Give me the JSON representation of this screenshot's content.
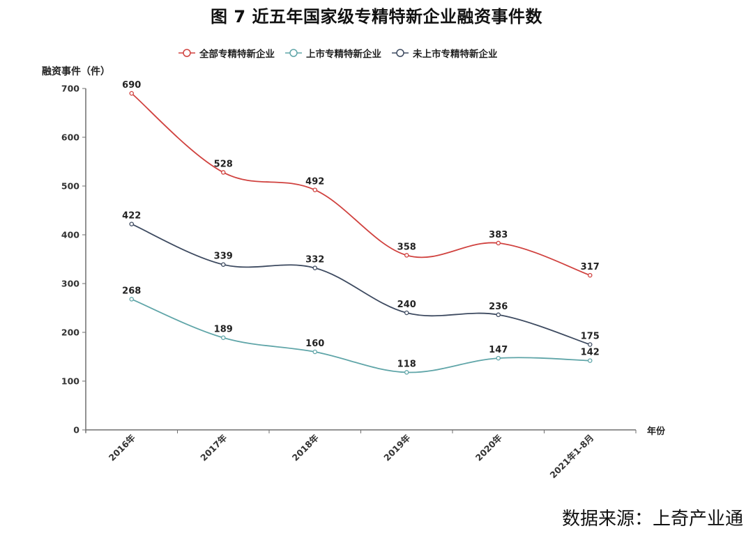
{
  "title": "图 7  近五年国家级专精特新企业融资事件数",
  "source": "数据来源：上奇产业通",
  "colors": {
    "all": "#d0413e",
    "listed": "#5fa5a8",
    "unlisted": "#3d4a60",
    "axis": "#6e6e6e"
  },
  "chart_data": {
    "type": "line",
    "smooth": true,
    "title": "图 7  近五年国家级专精特新企业融资事件数",
    "xlabel": "年份",
    "ylabel": "融资事件（件）",
    "ylim": [
      0,
      700
    ],
    "yticks": [
      0,
      100,
      200,
      300,
      400,
      500,
      600,
      700
    ],
    "grid": false,
    "legend_position": "top",
    "categories": [
      "2016年",
      "2017年",
      "2018年",
      "2019年",
      "2020年",
      "2021年1-8月"
    ],
    "series": [
      {
        "key": "all",
        "name": "全部专精特新企业",
        "values": [
          690,
          528,
          492,
          358,
          383,
          317
        ]
      },
      {
        "key": "listed",
        "name": "上市专精特新企业",
        "values": [
          268,
          189,
          160,
          118,
          147,
          142
        ]
      },
      {
        "key": "unlisted",
        "name": "未上市专精特新企业",
        "values": [
          422,
          339,
          332,
          240,
          236,
          175
        ]
      }
    ]
  }
}
